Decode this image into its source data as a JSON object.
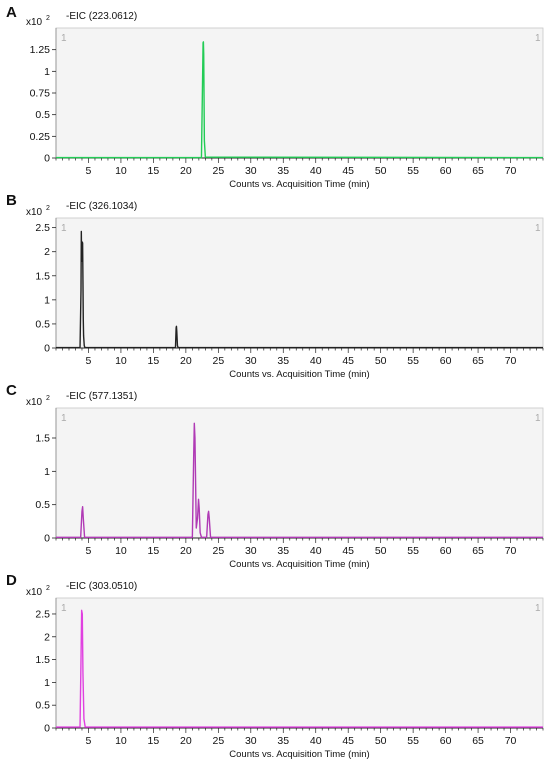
{
  "chart_data": [
    {
      "type": "line",
      "panel_label": "A",
      "title": "-EIC (223.0612)",
      "xlabel": "Counts vs. Acquisition Time (min)",
      "ylabel": "",
      "y_multiplier": "x10",
      "y_exponent": "2",
      "corner_markers": [
        "1",
        "1"
      ],
      "color": "#22cc55",
      "xlim": [
        0,
        75
      ],
      "ylim": [
        0,
        1.5
      ],
      "xticks": [
        5,
        10,
        15,
        20,
        25,
        30,
        35,
        40,
        45,
        50,
        55,
        60,
        65,
        70
      ],
      "yticks": [
        0,
        0.25,
        0.5,
        0.75,
        1,
        1.25
      ],
      "ytick_labels": [
        "0",
        "0.25",
        "0.5",
        "0.75",
        "1",
        "1.25"
      ],
      "series": [
        {
          "x": [
            0,
            22.4,
            22.6,
            22.65,
            22.7,
            22.75,
            22.85,
            23.0,
            75
          ],
          "y": [
            0.005,
            0.005,
            1.05,
            1.33,
            1.34,
            1.2,
            0.2,
            0.01,
            0.005
          ]
        }
      ]
    },
    {
      "type": "line",
      "panel_label": "B",
      "title": "-EIC (326.1034)",
      "xlabel": "Counts vs. Acquisition Time (min)",
      "ylabel": "",
      "y_multiplier": "x10",
      "y_exponent": "2",
      "corner_markers": [
        "1",
        "1"
      ],
      "color": "#222222",
      "xlim": [
        0,
        75
      ],
      "ylim": [
        0,
        2.7
      ],
      "xticks": [
        5,
        10,
        15,
        20,
        25,
        30,
        35,
        40,
        45,
        50,
        55,
        60,
        65,
        70
      ],
      "yticks": [
        0,
        0.5,
        1,
        1.5,
        2,
        2.5
      ],
      "ytick_labels": [
        "0",
        "0.5",
        "1",
        "1.5",
        "2",
        "2.5"
      ],
      "series": [
        {
          "x": [
            0,
            3.7,
            3.85,
            3.9,
            3.95,
            4.05,
            4.1,
            4.15,
            4.2,
            4.25,
            4.35,
            4.45,
            4.6,
            18.4,
            18.5,
            18.55,
            18.6,
            18.7,
            18.8,
            75
          ],
          "y": [
            0.01,
            0.01,
            1.2,
            2.42,
            1.8,
            2.2,
            2.18,
            1.4,
            0.6,
            0.25,
            0.05,
            0.01,
            0.01,
            0.01,
            0.42,
            0.45,
            0.35,
            0.05,
            0.01,
            0.01
          ]
        }
      ]
    },
    {
      "type": "line",
      "panel_label": "C",
      "title": "-EIC (577.1351)",
      "xlabel": "Counts vs. Acquisition Time (min)",
      "ylabel": "",
      "y_multiplier": "x10",
      "y_exponent": "2",
      "corner_markers": [
        "1",
        "1"
      ],
      "color": "#b03ab5",
      "xlim": [
        0,
        75
      ],
      "ylim": [
        0,
        1.95
      ],
      "xticks": [
        5,
        10,
        15,
        20,
        25,
        30,
        35,
        40,
        45,
        50,
        55,
        60,
        65,
        70
      ],
      "yticks": [
        0,
        0.5,
        1,
        1.5
      ],
      "ytick_labels": [
        "0",
        "0.5",
        "1",
        "1.5"
      ],
      "series": [
        {
          "x": [
            0,
            3.8,
            4.0,
            4.1,
            4.2,
            4.4,
            21.0,
            21.2,
            21.3,
            21.4,
            21.6,
            21.8,
            21.95,
            22.05,
            22.2,
            22.4,
            23.2,
            23.4,
            23.5,
            23.6,
            23.8,
            75
          ],
          "y": [
            0.01,
            0.01,
            0.4,
            0.47,
            0.3,
            0.01,
            0.01,
            1.2,
            1.72,
            1.5,
            0.15,
            0.3,
            0.58,
            0.45,
            0.08,
            0.01,
            0.01,
            0.35,
            0.4,
            0.3,
            0.01,
            0.01
          ]
        }
      ]
    },
    {
      "type": "line",
      "panel_label": "D",
      "title": "-EIC (303.0510)",
      "xlabel": "Counts vs. Acquisition Time (min)",
      "ylabel": "",
      "y_multiplier": "x10",
      "y_exponent": "2",
      "corner_markers": [
        "1",
        "1"
      ],
      "color": "#e040e0",
      "xlim": [
        0,
        75
      ],
      "ylim": [
        0,
        2.85
      ],
      "xticks": [
        5,
        10,
        15,
        20,
        25,
        30,
        35,
        40,
        45,
        50,
        55,
        60,
        65,
        70
      ],
      "yticks": [
        0,
        0.5,
        1,
        1.5,
        2,
        2.5
      ],
      "ytick_labels": [
        "0",
        "0.5",
        "1",
        "1.5",
        "2",
        "2.5"
      ],
      "series": [
        {
          "x": [
            0,
            3.7,
            3.85,
            3.95,
            4.05,
            4.15,
            4.3,
            4.5,
            75
          ],
          "y": [
            0.02,
            0.02,
            1.5,
            2.58,
            2.5,
            1.2,
            0.2,
            0.02,
            0.02
          ]
        }
      ]
    }
  ]
}
